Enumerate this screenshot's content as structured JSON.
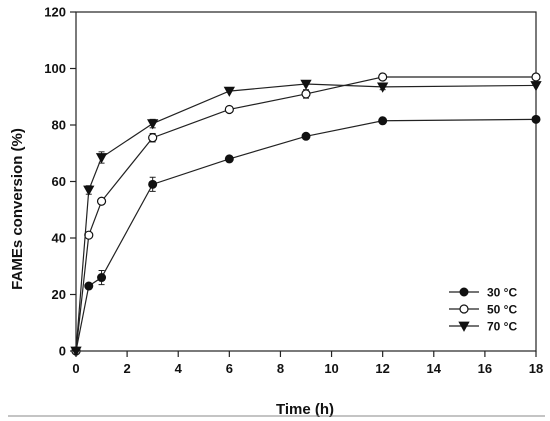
{
  "chart_data": {
    "type": "line",
    "title": "",
    "xlabel": "Time (h)",
    "ylabel": "FAMEs conversion (%)",
    "xlim": [
      0,
      18
    ],
    "ylim": [
      0,
      120
    ],
    "xticks": [
      0,
      2,
      4,
      6,
      8,
      10,
      12,
      14,
      16,
      18
    ],
    "yticks": [
      0,
      20,
      40,
      60,
      80,
      100,
      120
    ],
    "grid": false,
    "legend_position": "bottom-right",
    "series": [
      {
        "name": "30 °C",
        "marker": "filled-circle",
        "x": [
          0,
          0.5,
          1,
          3,
          6,
          9,
          12,
          18
        ],
        "y": [
          0,
          23,
          26,
          59,
          68,
          76,
          81.5,
          82
        ],
        "err": [
          0,
          0,
          2.5,
          2.5,
          0,
          0,
          0,
          0
        ]
      },
      {
        "name": "50 °C",
        "marker": "open-circle",
        "x": [
          0,
          0.5,
          1,
          3,
          6,
          9,
          12,
          18
        ],
        "y": [
          0,
          41,
          53,
          75.5,
          85.5,
          91,
          97,
          97
        ],
        "err": [
          0,
          0,
          0,
          1.5,
          0,
          1.5,
          0,
          0
        ]
      },
      {
        "name": "70 °C",
        "marker": "filled-triangle-down",
        "x": [
          0,
          0.5,
          1,
          3,
          6,
          9,
          12,
          18
        ],
        "y": [
          0,
          57,
          68.5,
          80.5,
          92,
          94.5,
          93.5,
          94
        ],
        "err": [
          0,
          1.5,
          2,
          1.5,
          0,
          0,
          1,
          0
        ]
      }
    ]
  },
  "legend": {
    "labels": [
      "30 °C",
      "50 °C",
      "70 °C"
    ]
  },
  "axes": {
    "xlabel": "Time (h)",
    "ylabel": "FAMEs conversion (%)",
    "x_tick_labels": [
      "0",
      "2",
      "4",
      "6",
      "8",
      "10",
      "12",
      "14",
      "16",
      "18"
    ],
    "y_tick_labels": [
      "0",
      "20",
      "40",
      "60",
      "80",
      "100",
      "120"
    ]
  },
  "colors": {
    "line": "#222222",
    "marker": "#111111",
    "background": "#ffffff"
  }
}
